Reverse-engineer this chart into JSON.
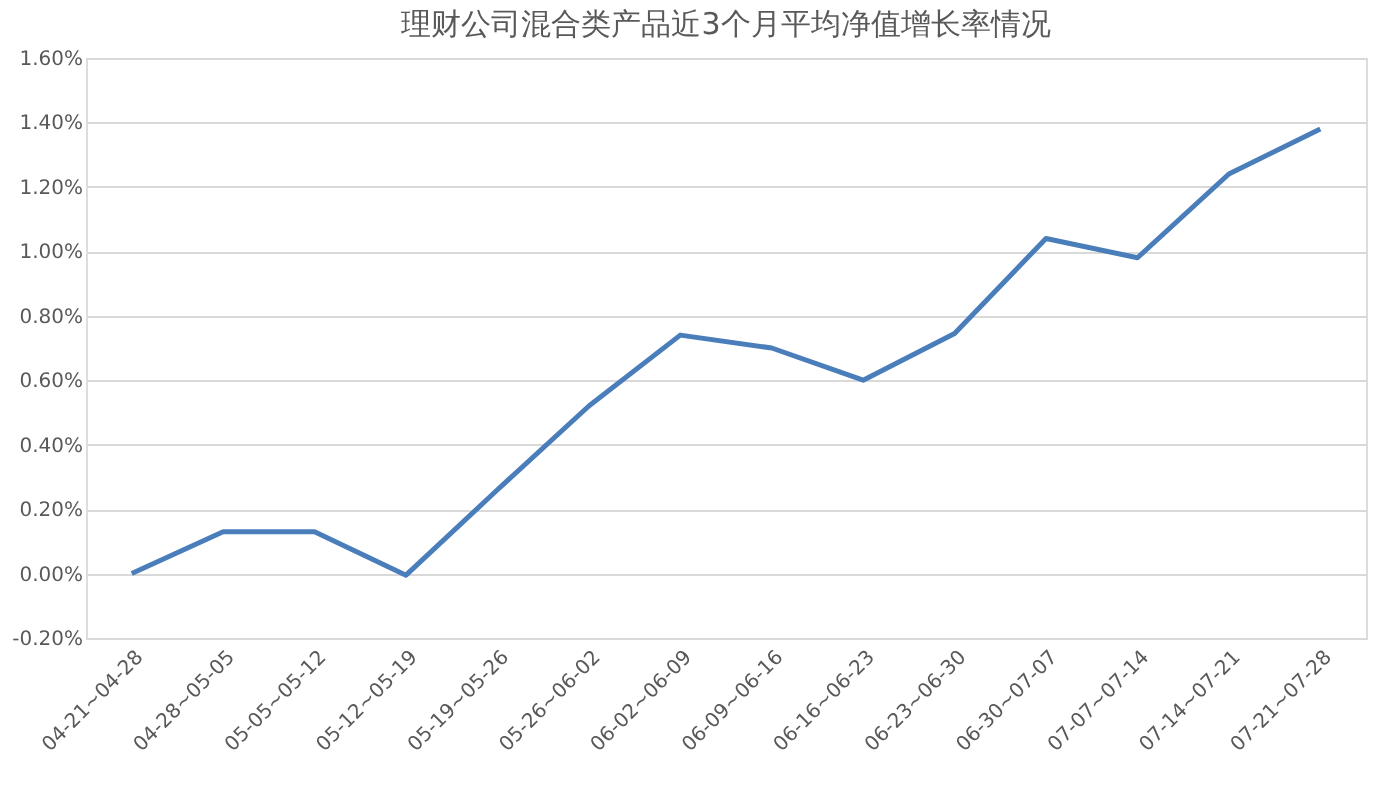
{
  "chart_data": {
    "type": "line",
    "title": "理财公司混合类产品近3个月平均净值增长率情况",
    "categories": [
      "04-21~04-28",
      "04-28~05-05",
      "05-05~05-12",
      "05-12~05-19",
      "05-19~05-26",
      "05-26~06-02",
      "06-02~06-09",
      "06-09~06-16",
      "06-16~06-23",
      "06-23~06-30",
      "06-30~07-07",
      "07-07~07-14",
      "07-14~07-21",
      "07-21~07-28"
    ],
    "series": [
      {
        "color": "#4a7ebb",
        "values": [
          0,
          0.13,
          0.13,
          -0.005,
          0.26,
          0.52,
          0.74,
          0.7,
          0.6,
          0.745,
          1.04,
          0.98,
          1.24,
          1.38
        ]
      }
    ],
    "ylim": [
      -0.2,
      1.6
    ],
    "yticks": [
      {
        "value": -0.2,
        "label": "-0.20%"
      },
      {
        "value": 0,
        "label": "0.00%"
      },
      {
        "value": 0.2,
        "label": "0.20%"
      },
      {
        "value": 0.4,
        "label": "0.40%"
      },
      {
        "value": 0.6,
        "label": "0.60%"
      },
      {
        "value": 0.8,
        "label": "0.80%"
      },
      {
        "value": 1.0,
        "label": "1.00%"
      },
      {
        "value": 1.2,
        "label": "1.20%"
      },
      {
        "value": 1.4,
        "label": "1.40%"
      },
      {
        "value": 1.6,
        "label": "1.60%"
      }
    ],
    "grid": "y",
    "marker": "none",
    "line_style": "solid"
  }
}
